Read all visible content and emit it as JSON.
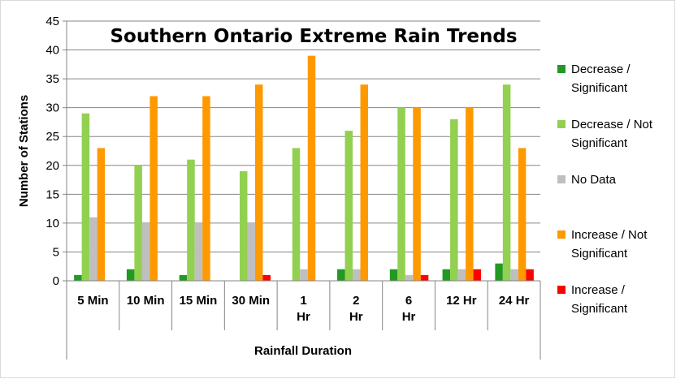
{
  "chart_data": {
    "type": "bar",
    "title": "Southern Ontario Extreme Rain Trends",
    "xlabel": "Rainfall Duration",
    "ylabel": "Number of Stations",
    "ylim": [
      0,
      45
    ],
    "yticks": [
      0,
      5,
      10,
      15,
      20,
      25,
      30,
      35,
      40,
      45
    ],
    "grid": true,
    "legend_position": "right",
    "categories": [
      [
        "5 Min"
      ],
      [
        "10 Min"
      ],
      [
        "15 Min"
      ],
      [
        "30 Min"
      ],
      [
        "1",
        "Hr"
      ],
      [
        "2",
        "Hr"
      ],
      [
        "6",
        "Hr"
      ],
      [
        "12 Hr"
      ],
      [
        "24 Hr"
      ]
    ],
    "series": [
      {
        "name": [
          "Decrease /",
          "Significant"
        ],
        "color": "#229922",
        "values": [
          1,
          2,
          1,
          0,
          0,
          2,
          2,
          2,
          3
        ]
      },
      {
        "name": [
          "Decrease / Not",
          "Significant"
        ],
        "color": "#92D050",
        "values": [
          29,
          20,
          21,
          19,
          23,
          26,
          30,
          28,
          34
        ]
      },
      {
        "name": [
          "No Data"
        ],
        "color": "#BFBFBF",
        "values": [
          11,
          10,
          10,
          10,
          2,
          2,
          1,
          2,
          2
        ]
      },
      {
        "name": [
          "Increase / Not",
          "Significant"
        ],
        "color": "#FF9900",
        "values": [
          23,
          32,
          32,
          34,
          39,
          34,
          30,
          30,
          23
        ]
      },
      {
        "name": [
          "Increase /",
          "Significant"
        ],
        "color": "#FF0000",
        "values": [
          0,
          0,
          0,
          1,
          0,
          0,
          1,
          2,
          2
        ]
      }
    ]
  }
}
